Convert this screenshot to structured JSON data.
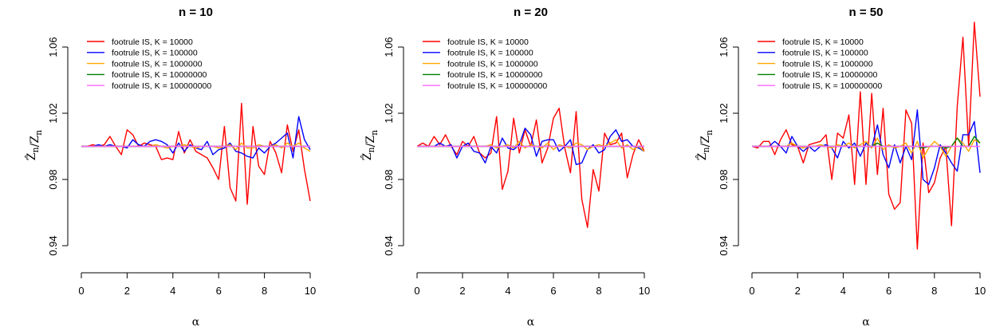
{
  "chart_data": [
    {
      "type": "line",
      "title": "n = 10",
      "xlabel": "α",
      "ylabel": "Ẑn / Zn",
      "xlim": [
        0,
        10
      ],
      "ylim": [
        0.93,
        1.075
      ],
      "xticks": [
        "0",
        "2",
        "4",
        "6",
        "8",
        "10"
      ],
      "yticks": [
        "0.94",
        "0.98",
        "1.02",
        "1.06"
      ],
      "grid": false,
      "legend": "top-left",
      "x": [
        0,
        0.25,
        0.5,
        0.75,
        1,
        1.25,
        1.5,
        1.75,
        2,
        2.25,
        2.5,
        2.75,
        3,
        3.25,
        3.5,
        3.75,
        4,
        4.25,
        4.5,
        4.75,
        5,
        5.25,
        5.5,
        5.75,
        6,
        6.25,
        6.5,
        6.75,
        7,
        7.25,
        7.5,
        7.75,
        8,
        8.25,
        8.5,
        8.75,
        9,
        9.25,
        9.5,
        9.75,
        10
      ],
      "series": [
        {
          "name": "footrule IS, K = 10000",
          "color": "#ff0000",
          "values": [
            1.0,
            1.0,
            1.001,
            1.0,
            1.001,
            1.006,
            1.0,
            0.995,
            1.01,
            1.007,
            1.0,
            1.002,
            1.001,
            1.0,
            0.992,
            0.993,
            0.992,
            1.009,
            0.996,
            1.004,
            0.997,
            0.995,
            0.993,
            0.987,
            0.98,
            1.012,
            0.975,
            0.967,
            1.026,
            0.965,
            1.012,
            0.988,
            0.983,
            1.003,
            0.996,
            0.984,
            1.013,
            0.997,
            1.01,
            0.986,
            0.967
          ]
        },
        {
          "name": "footrule IS, K = 100000",
          "color": "#0000ff",
          "values": [
            1.0,
            1.0,
            1.0,
            1.001,
            1.0,
            1.001,
            1.0,
            1.0,
            0.999,
            1.004,
            1.001,
            1.0,
            1.003,
            1.004,
            1.003,
            1.001,
            0.996,
            1.002,
            0.997,
            1.001,
            0.999,
            0.998,
            1.003,
            0.995,
            0.998,
            0.999,
            1.002,
            0.997,
            0.996,
            0.994,
            0.993,
            0.999,
            0.996,
            1.0,
            1.002,
            1.005,
            1.008,
            0.993,
            1.018,
            1.004,
            0.998
          ]
        },
        {
          "name": "footrule IS, K = 1000000",
          "color": "#ffa500",
          "values": [
            1.0,
            1.0,
            1.0,
            1.0,
            1.0,
            1.0,
            1.0,
            1.0,
            1.0,
            1.0,
            1.0,
            1.0,
            1.0,
            1.001,
            1.0,
            0.999,
            1.0,
            1.0,
            1.001,
            1.0,
            0.999,
            1.0,
            1.0,
            1.0,
            0.999,
            1.0,
            1.001,
            0.998,
            1.002,
            0.999,
            0.999,
            1.001,
            1.0,
            1.0,
            1.001,
            0.999,
            1.002,
            1.0,
            1.002,
            0.999,
            0.997
          ]
        },
        {
          "name": "footrule IS, K = 10000000",
          "color": "#008000",
          "values": [
            1.0,
            1.0,
            1.0,
            1.0,
            1.0,
            1.0,
            1.0,
            1.0,
            1.0,
            1.0,
            1.0,
            1.0,
            1.0,
            1.0,
            1.0,
            1.0,
            1.0,
            1.0,
            1.0,
            1.0,
            1.0,
            1.0,
            1.0,
            1.0,
            1.0,
            1.0,
            1.0,
            1.0,
            1.0,
            1.0,
            1.0,
            1.0,
            1.0,
            1.0,
            1.0,
            1.0,
            1.0,
            1.0,
            1.0,
            1.0,
            1.0
          ]
        },
        {
          "name": "footrule IS, K = 100000000",
          "color": "#ff66ff",
          "values": [
            1.0,
            1.0,
            1.0,
            1.0,
            1.0,
            1.0,
            1.0,
            1.0,
            1.0,
            1.0,
            1.0,
            1.0,
            1.0,
            1.0,
            1.0,
            1.0,
            1.0,
            1.0,
            1.0,
            1.0,
            1.0,
            1.0,
            1.0,
            1.0,
            1.0,
            1.0,
            1.0,
            1.0,
            1.0,
            1.0,
            1.0,
            1.0,
            1.0,
            1.0,
            1.0,
            1.0,
            1.0,
            1.0,
            1.0,
            1.0,
            1.0
          ]
        }
      ]
    },
    {
      "type": "line",
      "title": "n = 20",
      "xlabel": "α",
      "ylabel": "Ẑn / Zn",
      "xlim": [
        0,
        10
      ],
      "ylim": [
        0.93,
        1.075
      ],
      "xticks": [
        "0",
        "2",
        "4",
        "6",
        "8",
        "10"
      ],
      "yticks": [
        "0.94",
        "0.98",
        "1.02",
        "1.06"
      ],
      "grid": false,
      "legend": "top-left",
      "x": [
        0,
        0.25,
        0.5,
        0.75,
        1,
        1.25,
        1.5,
        1.75,
        2,
        2.25,
        2.5,
        2.75,
        3,
        3.25,
        3.5,
        3.75,
        4,
        4.25,
        4.5,
        4.75,
        5,
        5.25,
        5.5,
        5.75,
        6,
        6.25,
        6.5,
        6.75,
        7,
        7.25,
        7.5,
        7.75,
        8,
        8.25,
        8.5,
        8.75,
        9,
        9.25,
        9.5,
        9.75,
        10
      ],
      "series": [
        {
          "name": "footrule IS, K = 10000",
          "color": "#ff0000",
          "values": [
            1.0,
            1.002,
            1.0,
            1.006,
            1.001,
            1.007,
            1.0,
            0.995,
            1.003,
            1.0,
            1.006,
            0.996,
            0.993,
            0.996,
            1.018,
            0.974,
            0.985,
            1.017,
            0.996,
            1.01,
            1.0,
            1.016,
            0.99,
            0.999,
            1.017,
            1.023,
            0.999,
            0.984,
            1.021,
            0.968,
            0.951,
            0.986,
            0.973,
            1.008,
            1.001,
            1.002,
            1.008,
            0.981,
            0.995,
            1.004,
            0.997
          ]
        },
        {
          "name": "footrule IS, K = 100000",
          "color": "#0000ff",
          "values": [
            1.0,
            1.0,
            1.0,
            1.0,
            1.002,
            1.0,
            1.001,
            0.993,
            1.0,
            1.002,
            0.997,
            0.996,
            0.99,
            1.0,
            0.996,
            1.005,
            0.999,
            0.998,
            1.001,
            1.011,
            1.007,
            0.994,
            1.003,
            1.004,
            1.004,
            0.997,
            1.0,
            1.004,
            0.989,
            0.99,
            0.998,
            1.001,
            0.996,
            0.998,
            1.006,
            1.01,
            1.003,
            1.004,
            1.0,
            0.999,
            0.997
          ]
        },
        {
          "name": "footrule IS, K = 1000000",
          "color": "#ffa500",
          "values": [
            1.0,
            1.0,
            1.0,
            1.0,
            1.0,
            1.0,
            1.0,
            1.0,
            1.0,
            1.0,
            1.0,
            1.0,
            1.0,
            1.001,
            0.999,
            1.0,
            1.001,
            0.999,
            1.003,
            0.999,
            1.001,
            1.0,
            0.999,
            1.002,
            0.998,
            1.001,
            1.0,
            0.999,
            1.002,
            1.001,
            0.998,
            1.0,
            1.001,
            1.0,
            1.002,
            1.004,
            0.999,
            1.001,
            0.998,
            1.0,
            0.997
          ]
        },
        {
          "name": "footrule IS, K = 10000000",
          "color": "#008000",
          "values": [
            1.0,
            1.0,
            1.0,
            1.0,
            1.0,
            1.0,
            1.0,
            1.0,
            1.0,
            1.0,
            1.0,
            1.0,
            1.0,
            1.0,
            1.0,
            1.0,
            1.0,
            1.0,
            1.0,
            1.0,
            1.0,
            1.0,
            1.0,
            1.0,
            1.0,
            1.0,
            1.0,
            1.0,
            1.0,
            1.0,
            1.0,
            1.0,
            1.0,
            1.0,
            1.0,
            1.0,
            1.0,
            1.0,
            1.0,
            1.0,
            1.0
          ]
        },
        {
          "name": "footrule IS, K = 100000000",
          "color": "#ff66ff",
          "values": [
            1.0,
            1.0,
            1.0,
            1.0,
            1.0,
            1.0,
            1.0,
            1.0,
            1.0,
            1.0,
            1.0,
            1.0,
            1.0,
            1.0,
            1.0,
            1.0,
            1.0,
            1.0,
            1.0,
            1.0,
            1.0,
            1.0,
            1.0,
            1.0,
            1.0,
            1.0,
            1.0,
            1.0,
            1.0,
            1.0,
            1.0,
            1.0,
            1.0,
            1.0,
            1.0,
            1.0,
            1.0,
            1.0,
            1.0,
            1.0,
            1.0
          ]
        }
      ]
    },
    {
      "type": "line",
      "title": "n = 50",
      "xlabel": "α",
      "ylabel": "Ẑn / Zn",
      "xlim": [
        0,
        10
      ],
      "ylim": [
        0.93,
        1.075
      ],
      "xticks": [
        "0",
        "2",
        "4",
        "6",
        "8",
        "10"
      ],
      "yticks": [
        "0.94",
        "0.98",
        "1.02",
        "1.06"
      ],
      "grid": false,
      "legend": "top-left",
      "x": [
        0,
        0.25,
        0.5,
        0.75,
        1,
        1.25,
        1.5,
        1.75,
        2,
        2.25,
        2.5,
        2.75,
        3,
        3.25,
        3.5,
        3.75,
        4,
        4.25,
        4.5,
        4.75,
        5,
        5.25,
        5.5,
        5.75,
        6,
        6.25,
        6.5,
        6.75,
        7,
        7.25,
        7.5,
        7.75,
        8,
        8.25,
        8.5,
        8.75,
        9,
        9.25,
        9.5,
        9.75,
        10
      ],
      "series": [
        {
          "name": "footrule IS, K = 10000",
          "color": "#ff0000",
          "values": [
            1.0,
            0.999,
            1.003,
            1.003,
            0.995,
            1.004,
            1.01,
            1.001,
            1.0,
            0.99,
            1.001,
            1.002,
            1.003,
            1.007,
            0.98,
            1.008,
            1.005,
            1.019,
            0.977,
            1.033,
            0.977,
            1.032,
            0.983,
            1.023,
            0.971,
            0.962,
            0.966,
            1.022,
            1.014,
            0.938,
            1.002,
            0.972,
            0.978,
            0.993,
            1.0,
            0.952,
            1.024,
            1.066,
            1.0,
            1.075,
            1.03
          ]
        },
        {
          "name": "footrule IS, K = 100000",
          "color": "#0000ff",
          "values": [
            1.0,
            1.0,
            1.0,
            1.0,
            1.003,
            1.0,
            0.996,
            1.006,
            1.0,
            0.997,
            1.0,
            0.997,
            1.0,
            1.001,
            0.999,
            0.993,
            1.003,
            0.999,
            1.002,
            0.994,
            1.002,
            0.999,
            1.013,
            0.995,
            0.987,
            1.001,
            0.99,
            1.0,
            0.992,
            1.022,
            0.98,
            0.977,
            0.987,
            1.001,
            0.996,
            0.99,
            0.985,
            1.007,
            1.007,
            1.015,
            0.984
          ]
        },
        {
          "name": "footrule IS, K = 1000000",
          "color": "#ffa500",
          "values": [
            1.0,
            1.0,
            1.0,
            1.0,
            1.0,
            1.0,
            1.0,
            1.002,
            1.0,
            0.999,
            1.0,
            1.0,
            1.001,
            1.0,
            0.999,
            1.001,
            1.0,
            1.002,
            0.999,
            1.001,
            1.003,
            0.999,
            1.005,
            0.998,
            1.001,
            0.999,
            1.0,
            1.002,
            0.996,
            1.003,
            0.993,
            0.999,
            1.003,
            1.0,
            0.994,
            1.0,
            1.005,
            1.002,
            0.997,
            1.004,
            1.002
          ]
        },
        {
          "name": "footrule IS, K = 10000000",
          "color": "#008000",
          "values": [
            1.0,
            1.0,
            1.0,
            1.0,
            1.0,
            1.0,
            1.0,
            1.0,
            1.0,
            1.0,
            1.0,
            1.0,
            1.0,
            1.0,
            1.0,
            1.0,
            1.0,
            1.0,
            1.0,
            1.0,
            1.0,
            1.0,
            1.002,
            1.0,
            1.0,
            1.0,
            1.0,
            1.0,
            1.0,
            1.0,
            0.999,
            1.0,
            1.0,
            1.0,
            0.999,
            1.0,
            1.005,
            1.0,
            1.0,
            1.006,
            1.002
          ]
        },
        {
          "name": "footrule IS, K = 100000000",
          "color": "#ff66ff",
          "values": [
            1.0,
            1.0,
            1.0,
            1.0,
            1.0,
            1.0,
            1.0,
            1.0,
            1.0,
            1.0,
            1.0,
            1.0,
            1.0,
            1.0,
            1.0,
            1.0,
            1.0,
            1.0,
            1.0,
            1.0,
            1.0,
            1.0,
            1.0,
            1.0,
            1.0,
            1.0,
            1.0,
            1.0,
            1.0,
            1.0,
            1.0,
            1.0,
            1.0,
            1.0,
            1.0,
            1.0,
            1.0,
            1.0,
            1.0,
            1.0,
            1.0
          ]
        }
      ]
    }
  ]
}
